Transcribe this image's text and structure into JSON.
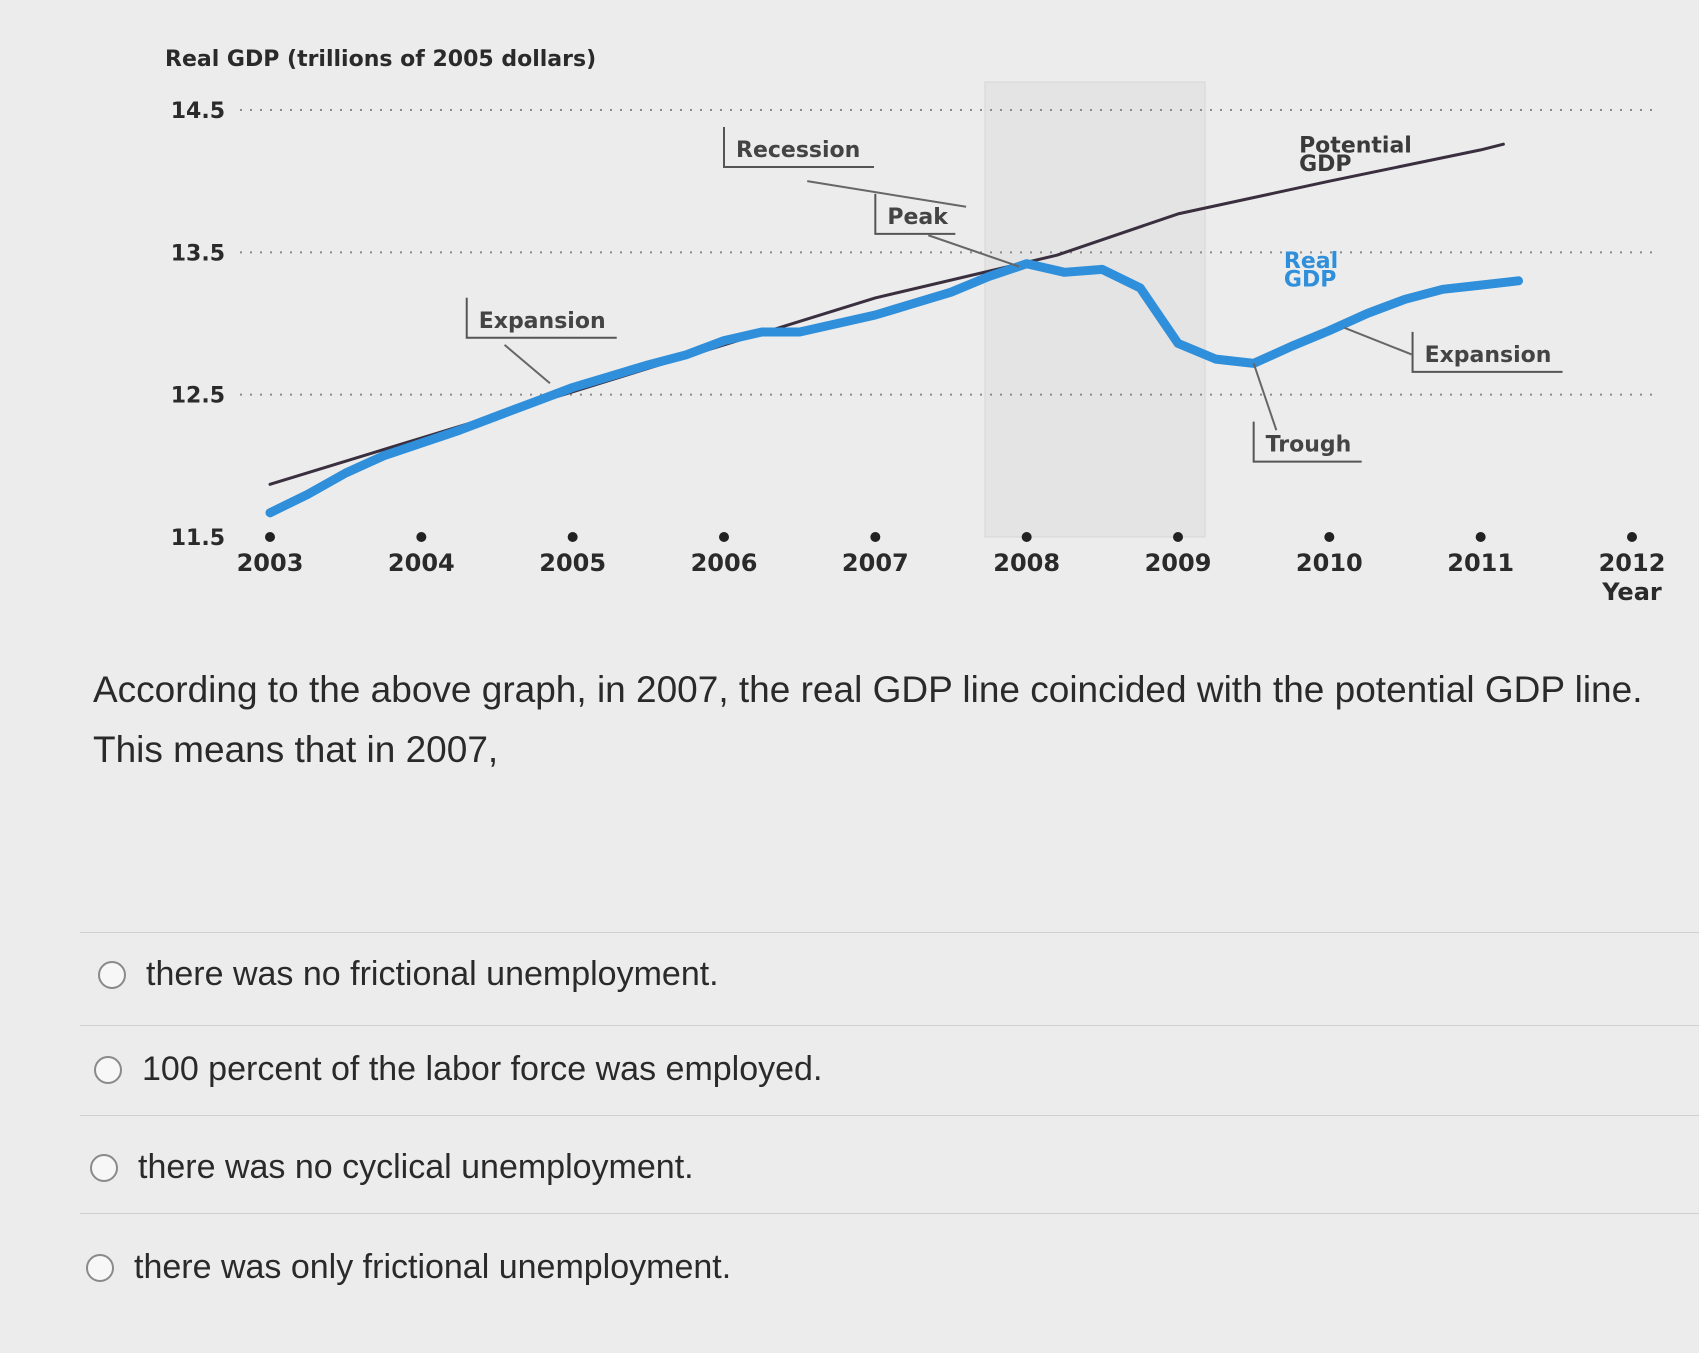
{
  "chart_data": {
    "type": "line",
    "title": "Real GDP (trillions of 2005 dollars)",
    "xlabel": "Year",
    "ylabel": "",
    "ylim": [
      11.5,
      14.5
    ],
    "xlim": [
      2003,
      2012
    ],
    "y_ticks": [
      "11.5",
      "12.5",
      "13.5",
      "14.5"
    ],
    "x_ticks": [
      "2003",
      "2004",
      "2005",
      "2006",
      "2007",
      "2008",
      "2009",
      "2010",
      "2011",
      "2012"
    ],
    "grid": "dotted horizontal",
    "series": [
      {
        "name": "Potential GDP",
        "color": "#3a2f3f",
        "x": [
          2003,
          2005,
          2007,
          2008.2,
          2009,
          2010,
          2011,
          2011.15
        ],
        "y": [
          11.87,
          12.52,
          13.18,
          13.48,
          13.77,
          14.0,
          14.22,
          14.26
        ]
      },
      {
        "name": "Real GDP",
        "color": "#2f8fdb",
        "x": [
          2003,
          2003.25,
          2003.5,
          2003.75,
          2004,
          2004.25,
          2004.5,
          2004.75,
          2005,
          2005.25,
          2005.5,
          2005.75,
          2006,
          2006.25,
          2006.5,
          2006.75,
          2007,
          2007.25,
          2007.5,
          2007.75,
          2008,
          2008.25,
          2008.5,
          2008.75,
          2009,
          2009.25,
          2009.5,
          2009.75,
          2010,
          2010.25,
          2010.5,
          2010.75,
          2011,
          2011.25
        ],
        "y": [
          11.67,
          11.8,
          11.95,
          12.07,
          12.16,
          12.25,
          12.35,
          12.45,
          12.55,
          12.63,
          12.71,
          12.78,
          12.88,
          12.94,
          12.94,
          13.0,
          13.06,
          13.14,
          13.22,
          13.33,
          13.42,
          13.36,
          13.38,
          13.25,
          12.86,
          12.75,
          12.72,
          12.84,
          12.95,
          13.07,
          13.17,
          13.24,
          13.27,
          13.3
        ]
      }
    ],
    "annotations": [
      {
        "text": "Recession",
        "x": 2006.0,
        "y": 14.17
      },
      {
        "text": "Peak",
        "x": 2007.0,
        "y": 13.7
      },
      {
        "text": "Expansion",
        "x": 2004.3,
        "y": 12.97
      },
      {
        "text": "Potential",
        "x": 2009.8,
        "y": 14.2
      },
      {
        "text": "GDP",
        "x": 2009.8,
        "y": 14.07
      },
      {
        "text": "Real",
        "x": 2009.7,
        "y": 13.39
      },
      {
        "text": "GDP",
        "x": 2009.7,
        "y": 13.26
      },
      {
        "text": "Expansion",
        "x": 2010.55,
        "y": 12.73
      },
      {
        "text": "Trough",
        "x": 2009.5,
        "y": 12.1
      }
    ],
    "recession_shading": [
      2008.2,
      2009.7
    ]
  },
  "question": {
    "text": "According to the above graph, in 2007, the real GDP line coincided with the potential GDP line. This means that in 2007,"
  },
  "options": [
    {
      "label": "there was no frictional unemployment."
    },
    {
      "label": "100 percent of the labor force was employed."
    },
    {
      "label": "there was no cyclical unemployment."
    },
    {
      "label": "there was only frictional unemployment."
    }
  ]
}
